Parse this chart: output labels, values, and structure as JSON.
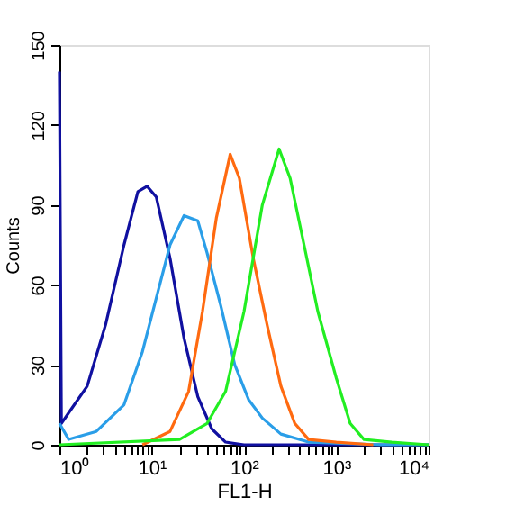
{
  "chart_data": {
    "type": "line",
    "xlabel": "FL1-H",
    "ylabel": "Counts",
    "log": "x",
    "legend": false,
    "grid": false,
    "marker": "none",
    "line_style": "solid",
    "xlim": [
      1,
      10000
    ],
    "ylim": [
      0,
      150
    ],
    "xticks": [
      {
        "value": 1,
        "label": "10⁰"
      },
      {
        "value": 2,
        "label": null
      },
      {
        "value": 3,
        "label": null
      },
      {
        "value": 4,
        "label": null
      },
      {
        "value": 5,
        "label": null
      },
      {
        "value": 6,
        "label": null
      },
      {
        "value": 7,
        "label": null
      },
      {
        "value": 8,
        "label": null
      },
      {
        "value": 9,
        "label": null
      },
      {
        "value": 10,
        "label": "10¹"
      },
      {
        "value": 20,
        "label": null
      },
      {
        "value": 30,
        "label": null
      },
      {
        "value": 40,
        "label": null
      },
      {
        "value": 50,
        "label": null
      },
      {
        "value": 60,
        "label": null
      },
      {
        "value": 70,
        "label": null
      },
      {
        "value": 80,
        "label": null
      },
      {
        "value": 90,
        "label": null
      },
      {
        "value": 100,
        "label": "10²"
      },
      {
        "value": 200,
        "label": null
      },
      {
        "value": 300,
        "label": null
      },
      {
        "value": 400,
        "label": null
      },
      {
        "value": 500,
        "label": null
      },
      {
        "value": 600,
        "label": null
      },
      {
        "value": 700,
        "label": null
      },
      {
        "value": 800,
        "label": null
      },
      {
        "value": 900,
        "label": null
      },
      {
        "value": 1000,
        "label": "10³"
      },
      {
        "value": 2000,
        "label": null
      },
      {
        "value": 3000,
        "label": null
      },
      {
        "value": 4000,
        "label": null
      },
      {
        "value": 5000,
        "label": null
      },
      {
        "value": 6000,
        "label": null
      },
      {
        "value": 7000,
        "label": null
      },
      {
        "value": 8000,
        "label": null
      },
      {
        "value": 9000,
        "label": null
      },
      {
        "value": 10000,
        "label": "10⁴"
      }
    ],
    "yticks": [
      0,
      30,
      60,
      90,
      120,
      150
    ],
    "series": [
      {
        "color": "#1010a0",
        "x": [
          1,
          1.05,
          1.26,
          2.0,
          3.16,
          5.01,
          7.08,
          8.91,
          11.2,
          15.8,
          22.4,
          31.6,
          44.7,
          63.1,
          100,
          10000
        ],
        "values": [
          140,
          8,
          12,
          22,
          45,
          75,
          95,
          97,
          93,
          70,
          40,
          18,
          6,
          1,
          0,
          0
        ]
      },
      {
        "color": "#2a9ee8",
        "x": [
          1,
          1.26,
          2.51,
          5.01,
          7.94,
          11.2,
          15.8,
          22.4,
          31.6,
          39.8,
          56.2,
          79.4,
          112,
          158,
          251,
          501,
          3162,
          10000
        ],
        "values": [
          8,
          2,
          5,
          15,
          35,
          55,
          75,
          86,
          84,
          72,
          52,
          30,
          17,
          10,
          4,
          1,
          0,
          0
        ]
      },
      {
        "color": "#ff6a10",
        "x": [
          7.94,
          15.8,
          25.1,
          35.5,
          50.1,
          70.8,
          89.1,
          126,
          178,
          251,
          355,
          501,
          1000,
          2512
        ],
        "values": [
          0,
          5,
          20,
          50,
          85,
          109,
          100,
          70,
          45,
          22,
          8,
          2,
          1,
          0
        ]
      },
      {
        "color": "#22ee22",
        "x": [
          1,
          20,
          39.8,
          63.1,
          100,
          158,
          240,
          316,
          447,
          631,
          1000,
          1413,
          1995,
          3981,
          10000
        ],
        "values": [
          0,
          2,
          8,
          20,
          50,
          90,
          111,
          100,
          75,
          50,
          25,
          8,
          2,
          1,
          0
        ]
      }
    ]
  }
}
